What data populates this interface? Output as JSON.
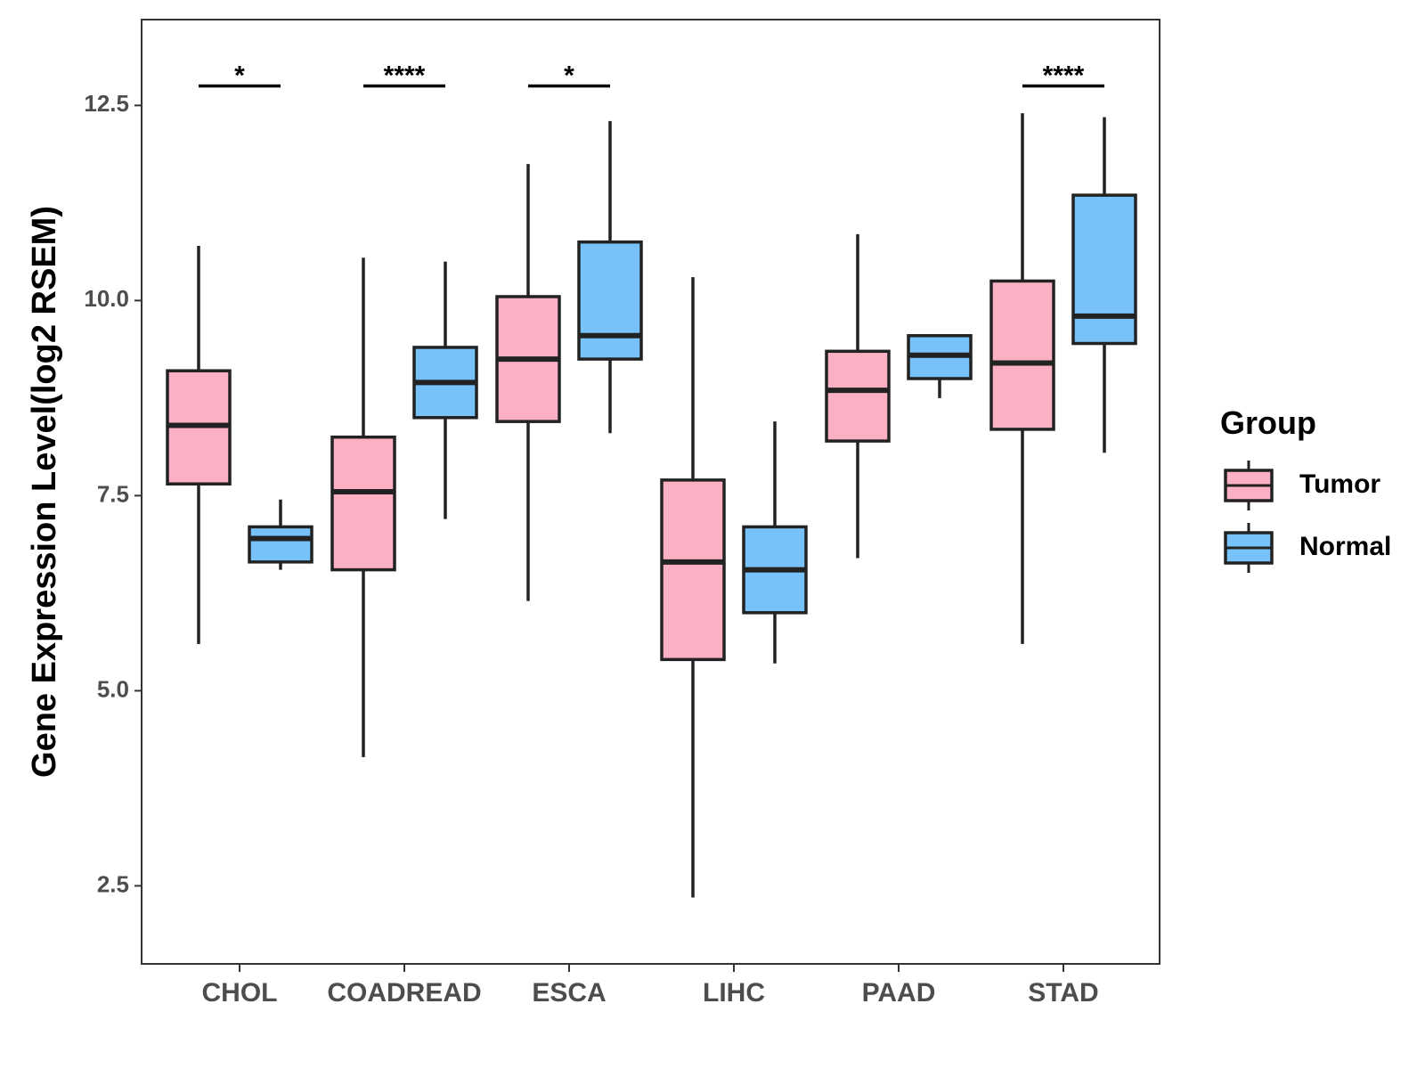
{
  "chart_data": {
    "type": "boxplot",
    "title": "",
    "xlabel": "",
    "ylabel": "Gene Expression Level(log2 RSEM)",
    "ylim": [
      1.5,
      13.6
    ],
    "yticks": [
      2.5,
      5.0,
      7.5,
      10.0,
      12.5
    ],
    "ytick_labels": [
      "2.5",
      "5.0",
      "7.5",
      "10.0",
      "12.5"
    ],
    "categories": [
      "CHOL",
      "COADREAD",
      "ESCA",
      "LIHC",
      "PAAD",
      "STAD"
    ],
    "legend": {
      "title": "Group",
      "position": "right",
      "items": [
        {
          "label": "Tumor",
          "color": "#FBB1C3"
        },
        {
          "label": "Normal",
          "color": "#77C2F8"
        }
      ]
    },
    "series": [
      {
        "name": "Tumor",
        "color": "#FBB1C3",
        "boxes": [
          {
            "min": 5.6,
            "q1": 7.65,
            "median": 8.4,
            "q3": 9.1,
            "max": 10.7
          },
          {
            "min": 4.15,
            "q1": 6.55,
            "median": 7.55,
            "q3": 8.25,
            "max": 10.55
          },
          {
            "min": 6.15,
            "q1": 8.45,
            "median": 9.25,
            "q3": 10.05,
            "max": 11.75
          },
          {
            "min": 2.35,
            "q1": 5.4,
            "median": 6.65,
            "q3": 7.7,
            "max": 10.3
          },
          {
            "min": 6.7,
            "q1": 8.2,
            "median": 8.85,
            "q3": 9.35,
            "max": 10.85
          },
          {
            "min": 5.6,
            "q1": 8.35,
            "median": 9.2,
            "q3": 10.25,
            "max": 12.4
          }
        ]
      },
      {
        "name": "Normal",
        "color": "#77C2F8",
        "boxes": [
          {
            "min": 6.55,
            "q1": 6.65,
            "median": 6.95,
            "q3": 7.1,
            "max": 7.45
          },
          {
            "min": 7.2,
            "q1": 8.5,
            "median": 8.95,
            "q3": 9.4,
            "max": 10.5
          },
          {
            "min": 8.3,
            "q1": 9.25,
            "median": 9.55,
            "q3": 10.75,
            "max": 12.3
          },
          {
            "min": 5.35,
            "q1": 6.0,
            "median": 6.55,
            "q3": 7.1,
            "max": 8.45
          },
          {
            "min": 8.75,
            "q1": 9.0,
            "median": 9.3,
            "q3": 9.55,
            "max": 9.55
          },
          {
            "min": 8.05,
            "q1": 9.45,
            "median": 9.8,
            "q3": 11.35,
            "max": 12.35
          }
        ]
      }
    ],
    "annotations": [
      {
        "category": "CHOL",
        "label": "*",
        "y": 12.75
      },
      {
        "category": "COADREAD",
        "label": "****",
        "y": 12.75
      },
      {
        "category": "ESCA",
        "label": "*",
        "y": 12.75
      },
      {
        "category": "STAD",
        "label": "****",
        "y": 12.75
      }
    ]
  }
}
